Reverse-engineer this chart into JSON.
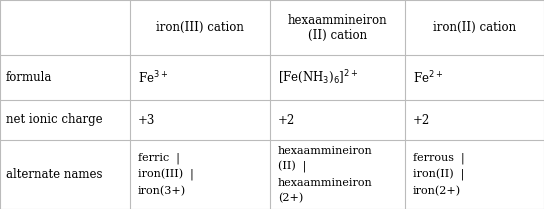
{
  "col_headers": [
    "",
    "iron(III) cation",
    "hexaammineiron\n(II) cation",
    "iron(II) cation"
  ],
  "row_labels": [
    "formula",
    "net ionic charge",
    "alternate names"
  ],
  "formula_row": [
    "Fe$^{3+}$",
    "[Fe(NH$_3$)$_6$]$^{2+}$",
    "Fe$^{2+}$"
  ],
  "charge_row": [
    "+3",
    "+2",
    "+2"
  ],
  "names_row": [
    "ferric  |\niron(III)  |\niron(3+)",
    "hexaammineiron\n(II)  |\nhexaammineiron\n(2+)",
    "ferrous  |\niron(II)  |\niron(2+)"
  ],
  "background_color": "#ffffff",
  "line_color": "#bbbbbb",
  "text_color": "#000000",
  "font_size": 8.5
}
